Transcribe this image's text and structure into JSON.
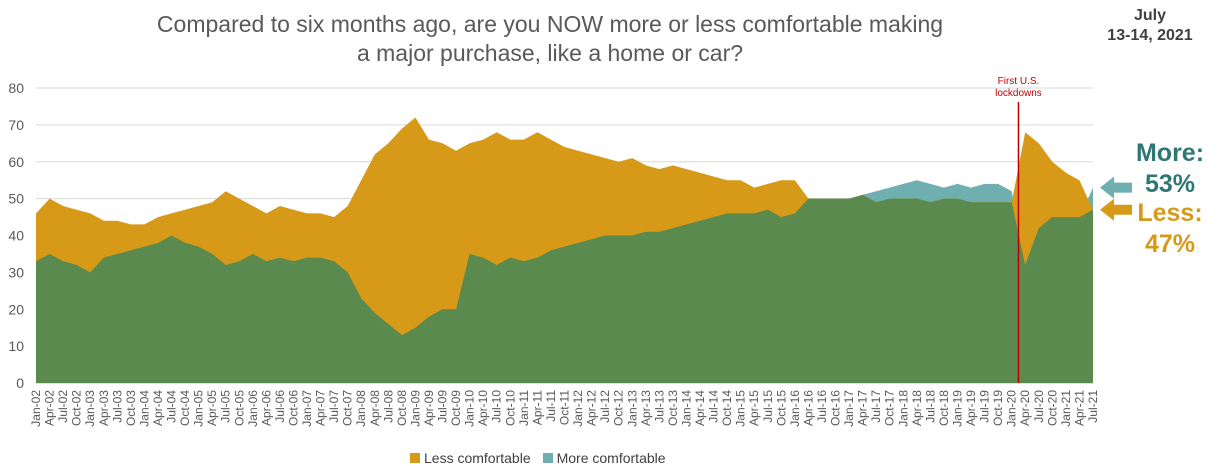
{
  "title_line1": "Compared to six months ago, are you NOW more or less comfortable making",
  "title_line2": "a major purchase, like a home or car?",
  "date_line1": "July",
  "date_line2": "13-14, 2021",
  "annotation_line1": "First U.S.",
  "annotation_line2": "lockdowns",
  "callouts": {
    "more_label": "More:",
    "more_value": "53%",
    "less_label": "Less:",
    "less_value": "47%"
  },
  "colors": {
    "less": "#D69A18",
    "more": "#6FAFAF",
    "overlap": "#5A8A4E",
    "annotation": "#C00000",
    "more_text": "#2E7775",
    "less_text": "#D69A18"
  },
  "chart_data": {
    "type": "area",
    "ylim": [
      0,
      80
    ],
    "yticks": [
      0,
      10,
      20,
      30,
      40,
      50,
      60,
      70,
      80
    ],
    "x_tick_labels": [
      "Jan-02",
      "Apr-02",
      "Jul-02",
      "Oct-02",
      "Jan-03",
      "Apr-03",
      "Jul-03",
      "Oct-03",
      "Jan-04",
      "Apr-04",
      "Jul-04",
      "Oct-04",
      "Jan-05",
      "Apr-05",
      "Jul-05",
      "Oct-05",
      "Jan-06",
      "Apr-06",
      "Jul-06",
      "Oct-06",
      "Jan-07",
      "Apr-07",
      "Jul-07",
      "Oct-07",
      "Jan-08",
      "Apr-08",
      "Jul-08",
      "Oct-08",
      "Jan-09",
      "Apr-09",
      "Jul-09",
      "Oct-09",
      "Jan-10",
      "Apr-10",
      "Jul-10",
      "Oct-10",
      "Jan-11",
      "Apr-11",
      "Jul-11",
      "Oct-11",
      "Jan-12",
      "Apr-12",
      "Jul-12",
      "Oct-12",
      "Jan-13",
      "Apr-13",
      "Jul-13",
      "Oct-13",
      "Jan-14",
      "Apr-14",
      "Jul-14",
      "Oct-14",
      "Jan-15",
      "Apr-15",
      "Jul-15",
      "Oct-15",
      "Jan-16",
      "Apr-16",
      "Jul-16",
      "Oct-16",
      "Jan-17",
      "Apr-17",
      "Jul-17",
      "Oct-17",
      "Jan-18",
      "Apr-18",
      "Jul-18",
      "Oct-18",
      "Jan-19",
      "Apr-19",
      "Jul-19",
      "Oct-19",
      "Jan-20",
      "Apr-20",
      "Jul-20",
      "Oct-20",
      "Jan-21",
      "Apr-21",
      "Jul-21"
    ],
    "x": [
      "Jan-02",
      "Apr-02",
      "Jul-02",
      "Oct-02",
      "Jan-03",
      "Apr-03",
      "Jul-03",
      "Oct-03",
      "Jan-04",
      "Apr-04",
      "Jul-04",
      "Oct-04",
      "Jan-05",
      "Apr-05",
      "Jul-05",
      "Oct-05",
      "Jan-06",
      "Apr-06",
      "Jul-06",
      "Oct-06",
      "Jan-07",
      "Apr-07",
      "Jul-07",
      "Oct-07",
      "Jan-08",
      "Apr-08",
      "Jul-08",
      "Oct-08",
      "Jan-09",
      "Apr-09",
      "Jul-09",
      "Oct-09",
      "Jan-10",
      "Apr-10",
      "Jul-10",
      "Oct-10",
      "Jan-11",
      "Apr-11",
      "Jul-11",
      "Oct-11",
      "Jan-12",
      "Apr-12",
      "Jul-12",
      "Oct-12",
      "Jan-13",
      "Apr-13",
      "Jul-13",
      "Oct-13",
      "Jan-14",
      "Apr-14",
      "Jul-14",
      "Oct-14",
      "Jan-15",
      "Apr-15",
      "Jul-15",
      "Oct-15",
      "Jan-16",
      "Apr-16",
      "Jul-16",
      "Oct-16",
      "Jan-17",
      "Apr-17",
      "Jul-17",
      "Oct-17",
      "Jan-18",
      "Apr-18",
      "Jul-18",
      "Oct-18",
      "Jan-19",
      "Apr-19",
      "Jul-19",
      "Oct-19",
      "Jan-20",
      "Apr-20",
      "Jul-20",
      "Oct-20",
      "Jan-21",
      "Apr-21",
      "Jul-21"
    ],
    "series": [
      {
        "name": "Less comfortable",
        "values": [
          46,
          50,
          48,
          47,
          46,
          44,
          44,
          43,
          43,
          45,
          46,
          47,
          48,
          49,
          52,
          50,
          48,
          46,
          48,
          47,
          46,
          46,
          45,
          48,
          55,
          62,
          65,
          69,
          72,
          66,
          65,
          63,
          65,
          66,
          68,
          66,
          66,
          68,
          66,
          64,
          63,
          62,
          61,
          60,
          61,
          59,
          58,
          59,
          58,
          57,
          56,
          55,
          55,
          53,
          54,
          55,
          55,
          50,
          50,
          50,
          50,
          51,
          49,
          50,
          50,
          50,
          49,
          50,
          50,
          49,
          49,
          49,
          49,
          68,
          65,
          60,
          57,
          55,
          47
        ]
      },
      {
        "name": "More comfortable",
        "values": [
          33,
          35,
          33,
          32,
          30,
          34,
          35,
          36,
          37,
          38,
          40,
          38,
          37,
          35,
          32,
          33,
          35,
          33,
          34,
          33,
          34,
          34,
          33,
          30,
          23,
          19,
          16,
          13,
          15,
          18,
          20,
          20,
          35,
          34,
          32,
          34,
          33,
          34,
          36,
          37,
          38,
          39,
          40,
          40,
          40,
          41,
          41,
          42,
          43,
          44,
          45,
          46,
          46,
          46,
          47,
          45,
          46,
          50,
          50,
          50,
          50,
          51,
          52,
          53,
          54,
          55,
          54,
          53,
          54,
          53,
          54,
          54,
          52,
          32,
          42,
          45,
          45,
          45,
          53
        ]
      }
    ]
  },
  "legend": {
    "less_label": "Less comfortable",
    "more_label": "More comfortable"
  }
}
